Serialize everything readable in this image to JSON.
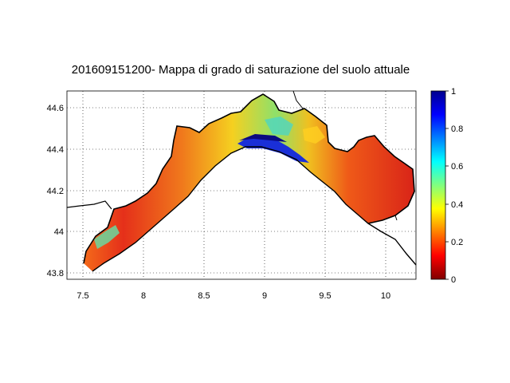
{
  "map": {
    "title": "201609151200- Mappa di grado di saturazione del suolo attuale",
    "x_ticks": [
      "7.5",
      "8",
      "8.5",
      "9",
      "9.5",
      "10"
    ],
    "y_ticks": [
      "44.6",
      "44.4",
      "44.2",
      "44",
      "43.8"
    ],
    "colorbar_ticks": [
      "1",
      "0.8",
      "0.6",
      "0.4",
      "0.2",
      "0"
    ],
    "grid": true,
    "colorbar_colors": [
      "#00008f",
      "#0000ff",
      "#0080ff",
      "#00ffff",
      "#80ff80",
      "#ffff00",
      "#ff8000",
      "#ff0000",
      "#800000"
    ]
  }
}
